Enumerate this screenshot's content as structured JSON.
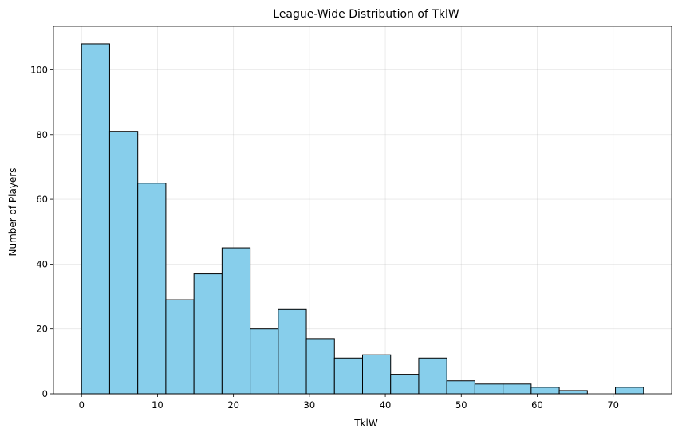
{
  "chart_data": {
    "type": "bar",
    "title": "League-Wide Distribution of TklW",
    "xlabel": "TklW",
    "ylabel": "Number of Players",
    "bin_edges": [
      0,
      3.7,
      7.4,
      11.1,
      14.8,
      18.5,
      22.2,
      25.9,
      29.6,
      33.3,
      37,
      40.7,
      44.4,
      48.1,
      51.8,
      55.5,
      59.2,
      62.9,
      66.6,
      70.3,
      74
    ],
    "values": [
      108,
      81,
      65,
      29,
      37,
      45,
      20,
      26,
      17,
      11,
      12,
      6,
      11,
      4,
      3,
      3,
      2,
      1,
      0,
      2
    ],
    "xlim": [
      -3.7,
      77.7
    ],
    "ylim": [
      0,
      113.4
    ],
    "xticks": [
      0,
      10,
      20,
      30,
      40,
      50,
      60,
      70
    ],
    "yticks": [
      0,
      20,
      40,
      60,
      80,
      100
    ],
    "grid": true,
    "bar_color": "#87CEEB",
    "edge_color": "#000000"
  }
}
